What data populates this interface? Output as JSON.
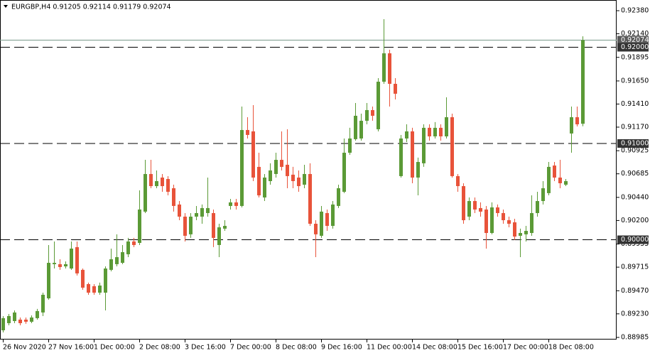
{
  "chart_data": {
    "type": "candlestick",
    "title": "EURGBP,H4  0.91205 0.92114 0.91179 0.92074",
    "up_color": "#5b9a36",
    "down_color": "#e8533a",
    "ylim": [
      0.88963,
      0.92491
    ],
    "yticks": [
      {
        "value": 0.9238,
        "label": "0.92380"
      },
      {
        "value": 0.9214,
        "label": "0.92140"
      },
      {
        "value": 0.91895,
        "label": "0.91895"
      },
      {
        "value": 0.9165,
        "label": "0.91650"
      },
      {
        "value": 0.9141,
        "label": "0.91410"
      },
      {
        "value": 0.9117,
        "label": "0.91170"
      },
      {
        "value": 0.90925,
        "label": "0.90925"
      },
      {
        "value": 0.90685,
        "label": "0.90685"
      },
      {
        "value": 0.9044,
        "label": "0.90440"
      },
      {
        "value": 0.902,
        "label": "0.90200"
      },
      {
        "value": 0.89955,
        "label": "0.89955"
      },
      {
        "value": 0.89715,
        "label": "0.89715"
      },
      {
        "value": 0.8947,
        "label": "0.89470"
      },
      {
        "value": 0.8923,
        "label": "0.89230"
      },
      {
        "value": 0.88985,
        "label": "0.88985"
      }
    ],
    "levels": [
      {
        "value": 0.92,
        "label": "0.92000"
      },
      {
        "value": 0.91,
        "label": "0.91000"
      },
      {
        "value": 0.9,
        "label": "0.90000"
      }
    ],
    "current_price": {
      "value": 0.92074,
      "label": "0.92074"
    },
    "categories": [
      "26 Nov 2020",
      null,
      null,
      null,
      null,
      null,
      null,
      null,
      "27 Nov 16:00",
      null,
      null,
      null,
      null,
      null,
      null,
      null,
      "1 Dec 00:00",
      null,
      null,
      null,
      null,
      null,
      null,
      null,
      "2 Dec 08:00",
      null,
      null,
      null,
      null,
      null,
      null,
      null,
      "3 Dec 16:00",
      null,
      null,
      null,
      null,
      null,
      null,
      null,
      "7 Dec 00:00",
      null,
      null,
      null,
      null,
      null,
      null,
      null,
      "8 Dec 08:00",
      null,
      null,
      null,
      null,
      null,
      null,
      null,
      "9 Dec 16:00",
      null,
      null,
      null,
      null,
      null,
      null,
      null,
      "11 Dec 00:00",
      null,
      null,
      null,
      null,
      null,
      null,
      null,
      "14 Dec 08:00",
      null,
      null,
      null,
      null,
      null,
      null,
      null,
      "15 Dec 16:00",
      null,
      null,
      null,
      null,
      null,
      null,
      null,
      "17 Dec 00:00",
      null,
      null,
      null,
      null,
      null,
      null,
      null,
      "18 Dec 08:00",
      null,
      null,
      null,
      null,
      null,
      null
    ],
    "open": [
      0.89059,
      0.89133,
      0.89155,
      0.8917,
      0.8917,
      0.89148,
      0.89185,
      0.89244,
      0.89391,
      0.89746,
      0.89746,
      0.89723,
      0.89701,
      0.89923,
      0.89687,
      0.89539,
      0.89517,
      0.8945,
      0.8945,
      0.89687,
      0.89746,
      0.8976,
      0.89849,
      0.89982,
      0.89967,
      0.90292,
      0.90683,
      0.90557,
      0.90646,
      0.90631,
      0.90535,
      0.90366,
      0.9024,
      0.90056,
      0.9024,
      0.9024,
      0.90277,
      0.90277,
      0.89945,
      0.90115,
      0.90351,
      0.90388,
      0.90351,
      0.9114,
      0.91126,
      0.90757,
      0.90439,
      0.90609,
      0.90683,
      0.9083,
      0.90779,
      0.90676,
      0.90646,
      0.90572,
      0.90683,
      0.90166,
      0.90041,
      0.90277,
      0.90144,
      0.90351,
      0.90498,
      0.90904,
      0.91045,
      0.91052,
      0.91236,
      0.91347,
      0.91148,
      0.91642,
      0.91937,
      0.9162,
      0.90661,
      0.91052,
      0.91126,
      0.90646,
      0.90794,
      0.91163,
      0.91074,
      0.91163,
      0.91074,
      0.91273,
      0.90661,
      0.90557,
      0.9024,
      0.90402,
      0.90329,
      0.90314,
      0.9007,
      0.90336,
      0.90277,
      0.90203,
      0.90181,
      0.90041,
      0.90056,
      0.9007,
      0.90277,
      0.90402,
      0.90484,
      0.90771,
      0.90646,
      0.90572,
      0.91104,
      0.91273,
      0.91205
    ],
    "high": [
      0.89207,
      0.89229,
      0.89266,
      0.89192,
      0.89192,
      0.89214,
      0.89281,
      0.8945,
      0.89945,
      0.89982,
      0.89797,
      0.89775,
      0.89982,
      0.89982,
      0.89701,
      0.89554,
      0.89539,
      0.89554,
      0.89723,
      0.89908,
      0.90056,
      0.89945,
      0.90019,
      0.90019,
      0.90513,
      0.9083,
      0.9083,
      0.9072,
      0.90683,
      0.90661,
      0.90572,
      0.90402,
      0.90277,
      0.90277,
      0.90351,
      0.90366,
      0.90646,
      0.90314,
      0.90166,
      0.90203,
      0.90424,
      0.90424,
      0.91384,
      0.91273,
      0.91399,
      0.90904,
      0.90683,
      0.90794,
      0.90904,
      0.91126,
      0.91148,
      0.90757,
      0.9072,
      0.90779,
      0.90794,
      0.90203,
      0.90351,
      0.90314,
      0.90402,
      0.90572,
      0.91052,
      0.91163,
      0.91421,
      0.9131,
      0.91421,
      0.91384,
      0.91679,
      0.92292,
      0.91974,
      0.91679,
      0.91089,
      0.91199,
      0.91163,
      0.90853,
      0.91199,
      0.91199,
      0.91222,
      0.91199,
      0.9148,
      0.9131,
      0.90683,
      0.90587,
      0.90439,
      0.90439,
      0.90388,
      0.90351,
      0.90388,
      0.90366,
      0.90314,
      0.9024,
      0.90218,
      0.90115,
      0.90144,
      0.90461,
      0.90498,
      0.90609,
      0.90808,
      0.90808,
      0.9083,
      0.90631,
      0.91384,
      0.91384,
      0.92114
    ],
    "low": [
      0.89037,
      0.89111,
      0.89133,
      0.89111,
      0.89126,
      0.89133,
      0.8917,
      0.89207,
      0.89377,
      0.89701,
      0.89687,
      0.89701,
      0.89687,
      0.89628,
      0.8948,
      0.89428,
      0.89428,
      0.89428,
      0.89266,
      0.89672,
      0.89723,
      0.89746,
      0.89819,
      0.89923,
      0.89945,
      0.90277,
      0.90535,
      0.90535,
      0.90498,
      0.90461,
      0.90292,
      0.90203,
      0.89982,
      0.90019,
      0.90203,
      0.90166,
      0.9024,
      0.89923,
      0.89819,
      0.90092,
      0.90314,
      0.90314,
      0.90336,
      0.91052,
      0.90609,
      0.90439,
      0.90402,
      0.90572,
      0.90646,
      0.9072,
      0.90535,
      0.90535,
      0.90498,
      0.90535,
      0.90144,
      0.89819,
      0.90019,
      0.90092,
      0.90115,
      0.90329,
      0.90484,
      0.90882,
      0.9103,
      0.9103,
      0.91199,
      0.91236,
      0.91126,
      0.9162,
      0.91384,
      0.91458,
      0.90646,
      0.91015,
      0.90587,
      0.90461,
      0.90757,
      0.9103,
      0.91052,
      0.9103,
      0.91052,
      0.90646,
      0.90498,
      0.90166,
      0.90203,
      0.90277,
      0.9024,
      0.89908,
      0.90056,
      0.9024,
      0.90166,
      0.90129,
      0.89997,
      0.89819,
      0.89982,
      0.90041,
      0.9024,
      0.90366,
      0.90461,
      0.90609,
      0.90535,
      0.90557,
      0.90904,
      0.91177,
      0.91179
    ],
    "close": [
      0.89185,
      0.89207,
      0.89244,
      0.89133,
      0.89148,
      0.89192,
      0.89259,
      0.89428,
      0.8976,
      0.8976,
      0.89716,
      0.89746,
      0.89908,
      0.8965,
      0.89502,
      0.8945,
      0.8945,
      0.89524,
      0.89701,
      0.89797,
      0.89819,
      0.89871,
      0.89982,
      0.89945,
      0.90314,
      0.90683,
      0.90557,
      0.90609,
      0.90557,
      0.90498,
      0.90351,
      0.9024,
      0.90041,
      0.9024,
      0.90277,
      0.90329,
      0.90329,
      0.90019,
      0.90129,
      0.90144,
      0.90388,
      0.90351,
      0.9114,
      0.91089,
      0.90646,
      0.90461,
      0.90646,
      0.9072,
      0.9083,
      0.90757,
      0.90661,
      0.90609,
      0.90557,
      0.90683,
      0.90166,
      0.90056,
      0.90292,
      0.90144,
      0.90366,
      0.90535,
      0.90904,
      0.91052,
      0.91288,
      0.91236,
      0.91347,
      0.91288,
      0.91642,
      0.91937,
      0.9162,
      0.91517,
      0.91052,
      0.91126,
      0.90646,
      0.90808,
      0.91163,
      0.91074,
      0.91163,
      0.91074,
      0.91273,
      0.90661,
      0.90557,
      0.90203,
      0.90402,
      0.90314,
      0.90292,
      0.9007,
      0.90336,
      0.90277,
      0.90203,
      0.90166,
      0.90033,
      0.9007,
      0.90092,
      0.90277,
      0.90402,
      0.90535,
      0.90757,
      0.90646,
      0.90587,
      0.90609,
      0.91273,
      0.91199,
      0.92074
    ]
  }
}
